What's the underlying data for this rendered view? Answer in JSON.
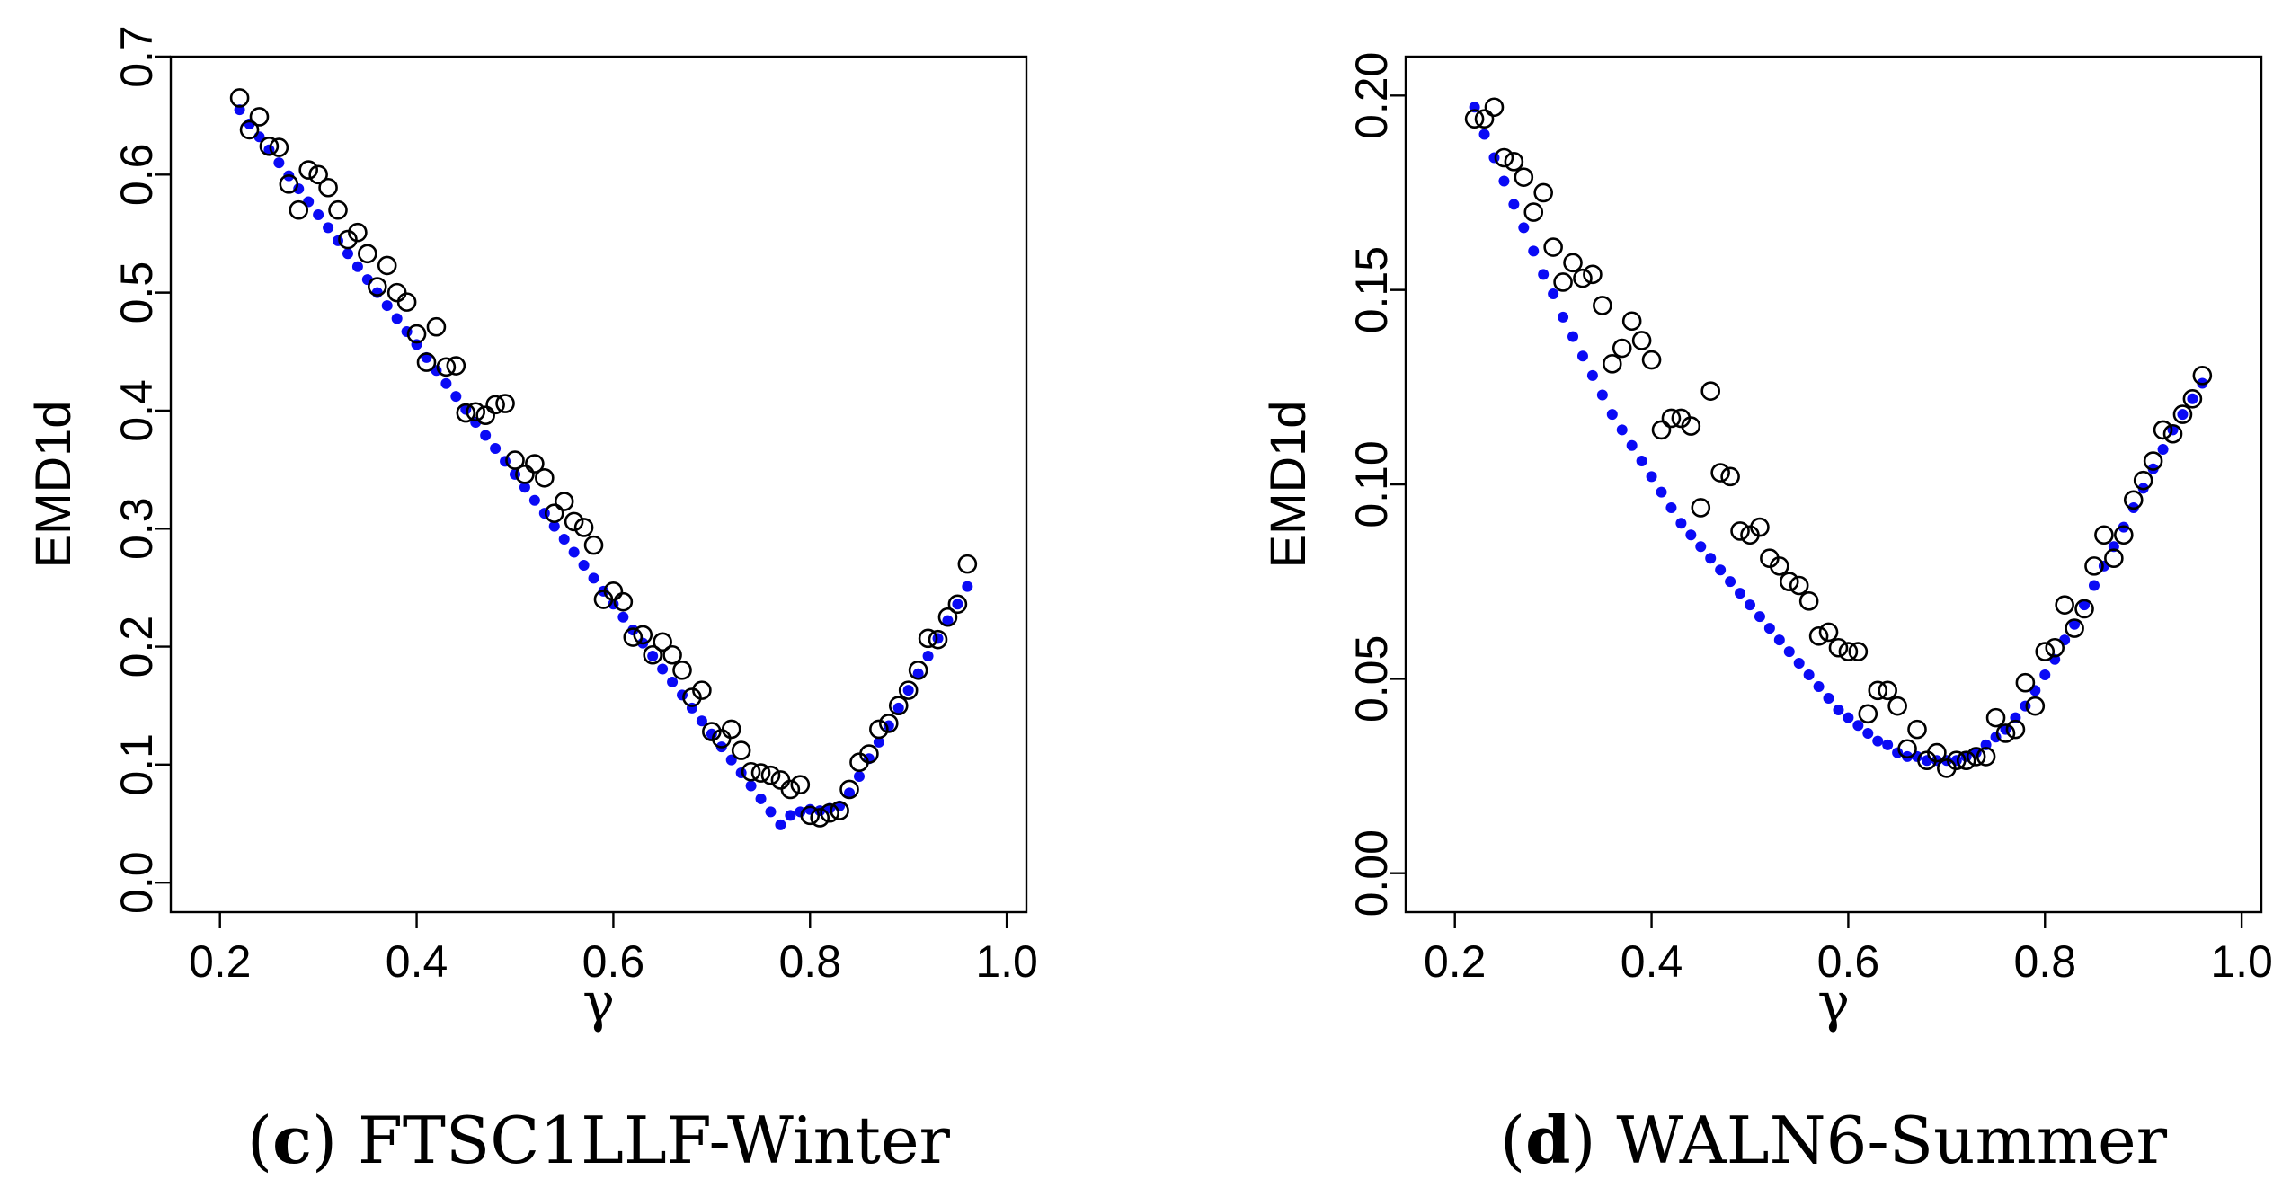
{
  "chart_data": [
    {
      "type": "scatter",
      "panel_letter": "c",
      "title": "FTSC1LLF-Winter",
      "xlabel": "γ",
      "ylabel": "EMD1d",
      "xlim": [
        0.15,
        1.02
      ],
      "ylim": [
        -0.025,
        0.7
      ],
      "xticks": [
        0.2,
        0.4,
        0.6,
        0.8,
        1.0
      ],
      "xtick_labels": [
        "0.2",
        "0.4",
        "0.6",
        "0.8",
        "1.0"
      ],
      "yticks": [
        0.0,
        0.1,
        0.2,
        0.3,
        0.4,
        0.5,
        0.6,
        0.7
      ],
      "ytick_labels": [
        "0.0",
        "0.1",
        "0.2",
        "0.3",
        "0.4",
        "0.5",
        "0.6",
        "0.7"
      ],
      "series": [
        {
          "name": "observed",
          "marker": "open-circle",
          "color": "#000000",
          "x": [
            0.22,
            0.23,
            0.24,
            0.25,
            0.26,
            0.27,
            0.28,
            0.29,
            0.3,
            0.31,
            0.32,
            0.33,
            0.34,
            0.35,
            0.36,
            0.37,
            0.38,
            0.39,
            0.4,
            0.41,
            0.42,
            0.43,
            0.44,
            0.45,
            0.46,
            0.47,
            0.48,
            0.49,
            0.5,
            0.51,
            0.52,
            0.53,
            0.54,
            0.55,
            0.56,
            0.57,
            0.58,
            0.59,
            0.6,
            0.61,
            0.62,
            0.63,
            0.64,
            0.65,
            0.66,
            0.67,
            0.68,
            0.69,
            0.7,
            0.71,
            0.72,
            0.73,
            0.74,
            0.75,
            0.76,
            0.77,
            0.78,
            0.79,
            0.8,
            0.81,
            0.82,
            0.83,
            0.84,
            0.85,
            0.86,
            0.87,
            0.88,
            0.89,
            0.9,
            0.91,
            0.92,
            0.93,
            0.94,
            0.95,
            0.96
          ],
          "y": [
            0.665,
            0.638,
            0.649,
            0.624,
            0.623,
            0.592,
            0.57,
            0.604,
            0.6,
            0.589,
            0.57,
            0.545,
            0.551,
            0.533,
            0.505,
            0.523,
            0.5,
            0.492,
            0.465,
            0.441,
            0.471,
            0.437,
            0.438,
            0.398,
            0.399,
            0.396,
            0.405,
            0.406,
            0.358,
            0.346,
            0.355,
            0.343,
            0.313,
            0.323,
            0.306,
            0.301,
            0.286,
            0.24,
            0.247,
            0.238,
            0.208,
            0.21,
            0.193,
            0.204,
            0.193,
            0.18,
            0.157,
            0.163,
            0.128,
            0.122,
            0.13,
            0.112,
            0.094,
            0.093,
            0.091,
            0.087,
            0.079,
            0.083,
            0.057,
            0.055,
            0.059,
            0.061,
            0.079,
            0.102,
            0.109,
            0.13,
            0.135,
            0.15,
            0.163,
            0.18,
            0.207,
            0.206,
            0.225,
            0.236,
            0.27
          ]
        },
        {
          "name": "fitted",
          "marker": "filled-dot",
          "color": "#0a0af5",
          "x": [
            0.22,
            0.23,
            0.24,
            0.25,
            0.26,
            0.27,
            0.28,
            0.29,
            0.3,
            0.31,
            0.32,
            0.33,
            0.34,
            0.35,
            0.36,
            0.37,
            0.38,
            0.39,
            0.4,
            0.41,
            0.42,
            0.43,
            0.44,
            0.45,
            0.46,
            0.47,
            0.48,
            0.49,
            0.5,
            0.51,
            0.52,
            0.53,
            0.54,
            0.55,
            0.56,
            0.57,
            0.58,
            0.59,
            0.6,
            0.61,
            0.62,
            0.63,
            0.64,
            0.65,
            0.66,
            0.67,
            0.68,
            0.69,
            0.7,
            0.71,
            0.72,
            0.73,
            0.74,
            0.75,
            0.76,
            0.77,
            0.78,
            0.79,
            0.8,
            0.81,
            0.82,
            0.83,
            0.84,
            0.85,
            0.86,
            0.87,
            0.88,
            0.89,
            0.9,
            0.91,
            0.92,
            0.93,
            0.94,
            0.95,
            0.96
          ],
          "y": [
            0.655,
            0.643,
            0.632,
            0.621,
            0.61,
            0.599,
            0.588,
            0.577,
            0.566,
            0.555,
            0.544,
            0.533,
            0.522,
            0.511,
            0.5,
            0.489,
            0.478,
            0.467,
            0.456,
            0.445,
            0.434,
            0.423,
            0.412,
            0.401,
            0.39,
            0.379,
            0.368,
            0.357,
            0.346,
            0.335,
            0.324,
            0.313,
            0.302,
            0.291,
            0.28,
            0.269,
            0.258,
            0.247,
            0.236,
            0.225,
            0.214,
            0.203,
            0.192,
            0.181,
            0.17,
            0.159,
            0.148,
            0.137,
            0.126,
            0.115,
            0.104,
            0.093,
            0.082,
            0.071,
            0.06,
            0.049,
            0.057,
            0.06,
            0.062,
            0.061,
            0.063,
            0.065,
            0.076,
            0.09,
            0.105,
            0.119,
            0.133,
            0.148,
            0.163,
            0.177,
            0.192,
            0.207,
            0.222,
            0.236,
            0.251
          ]
        }
      ]
    },
    {
      "type": "scatter",
      "panel_letter": "d",
      "title": "WALN6-Summer",
      "xlabel": "γ",
      "ylabel": "EMD1d",
      "xlim": [
        0.15,
        1.02
      ],
      "ylim": [
        -0.01,
        0.21
      ],
      "xticks": [
        0.2,
        0.4,
        0.6,
        0.8,
        1.0
      ],
      "xtick_labels": [
        "0.2",
        "0.4",
        "0.6",
        "0.8",
        "1.0"
      ],
      "yticks": [
        0.0,
        0.05,
        0.1,
        0.15,
        0.2
      ],
      "ytick_labels": [
        "0.00",
        "0.05",
        "0.10",
        "0.15",
        "0.20"
      ],
      "series": [
        {
          "name": "observed",
          "marker": "open-circle",
          "color": "#000000",
          "x": [
            0.22,
            0.23,
            0.24,
            0.25,
            0.26,
            0.27,
            0.28,
            0.29,
            0.3,
            0.31,
            0.32,
            0.33,
            0.34,
            0.35,
            0.36,
            0.37,
            0.38,
            0.39,
            0.4,
            0.41,
            0.42,
            0.43,
            0.44,
            0.45,
            0.46,
            0.47,
            0.48,
            0.49,
            0.5,
            0.51,
            0.52,
            0.53,
            0.54,
            0.55,
            0.56,
            0.57,
            0.58,
            0.59,
            0.6,
            0.61,
            0.62,
            0.63,
            0.64,
            0.65,
            0.66,
            0.67,
            0.68,
            0.69,
            0.7,
            0.71,
            0.72,
            0.73,
            0.74,
            0.75,
            0.76,
            0.77,
            0.78,
            0.79,
            0.8,
            0.81,
            0.82,
            0.83,
            0.84,
            0.85,
            0.86,
            0.87,
            0.88,
            0.89,
            0.9,
            0.91,
            0.92,
            0.93,
            0.94,
            0.95,
            0.96
          ],
          "y": [
            0.194,
            0.194,
            0.197,
            0.184,
            0.183,
            0.179,
            0.17,
            0.175,
            0.161,
            0.152,
            0.157,
            0.153,
            0.154,
            0.146,
            0.131,
            0.135,
            0.142,
            0.137,
            0.132,
            0.114,
            0.117,
            0.117,
            0.115,
            0.094,
            0.124,
            0.103,
            0.102,
            0.088,
            0.087,
            0.089,
            0.081,
            0.079,
            0.075,
            0.074,
            0.07,
            0.061,
            0.062,
            0.058,
            0.057,
            0.057,
            0.041,
            0.047,
            0.047,
            0.043,
            0.032,
            0.037,
            0.029,
            0.031,
            0.027,
            0.029,
            0.029,
            0.03,
            0.03,
            0.04,
            0.036,
            0.037,
            0.049,
            0.043,
            0.057,
            0.058,
            0.069,
            0.063,
            0.068,
            0.079,
            0.087,
            0.081,
            0.087,
            0.096,
            0.101,
            0.106,
            0.114,
            0.113,
            0.118,
            0.122,
            0.128
          ]
        },
        {
          "name": "fitted",
          "marker": "filled-dot",
          "color": "#0a0af5",
          "x": [
            0.22,
            0.23,
            0.24,
            0.25,
            0.26,
            0.27,
            0.28,
            0.29,
            0.3,
            0.31,
            0.32,
            0.33,
            0.34,
            0.35,
            0.36,
            0.37,
            0.38,
            0.39,
            0.4,
            0.41,
            0.42,
            0.43,
            0.44,
            0.45,
            0.46,
            0.47,
            0.48,
            0.49,
            0.5,
            0.51,
            0.52,
            0.53,
            0.54,
            0.55,
            0.56,
            0.57,
            0.58,
            0.59,
            0.6,
            0.61,
            0.62,
            0.63,
            0.64,
            0.65,
            0.66,
            0.67,
            0.68,
            0.69,
            0.7,
            0.71,
            0.72,
            0.73,
            0.74,
            0.75,
            0.76,
            0.77,
            0.78,
            0.79,
            0.8,
            0.81,
            0.82,
            0.83,
            0.84,
            0.85,
            0.86,
            0.87,
            0.88,
            0.89,
            0.9,
            0.91,
            0.92,
            0.93,
            0.94,
            0.95,
            0.96
          ],
          "y": [
            0.197,
            0.19,
            0.184,
            0.178,
            0.172,
            0.166,
            0.16,
            0.154,
            0.149,
            0.143,
            0.138,
            0.133,
            0.128,
            0.123,
            0.118,
            0.114,
            0.11,
            0.106,
            0.102,
            0.098,
            0.094,
            0.09,
            0.087,
            0.084,
            0.081,
            0.078,
            0.075,
            0.072,
            0.069,
            0.066,
            0.063,
            0.06,
            0.057,
            0.054,
            0.051,
            0.048,
            0.045,
            0.042,
            0.04,
            0.038,
            0.036,
            0.034,
            0.033,
            0.031,
            0.03,
            0.03,
            0.029,
            0.029,
            0.029,
            0.029,
            0.03,
            0.031,
            0.033,
            0.035,
            0.037,
            0.04,
            0.043,
            0.047,
            0.051,
            0.055,
            0.06,
            0.064,
            0.069,
            0.074,
            0.079,
            0.084,
            0.089,
            0.094,
            0.099,
            0.104,
            0.109,
            0.114,
            0.118,
            0.122,
            0.126
          ]
        }
      ]
    }
  ]
}
